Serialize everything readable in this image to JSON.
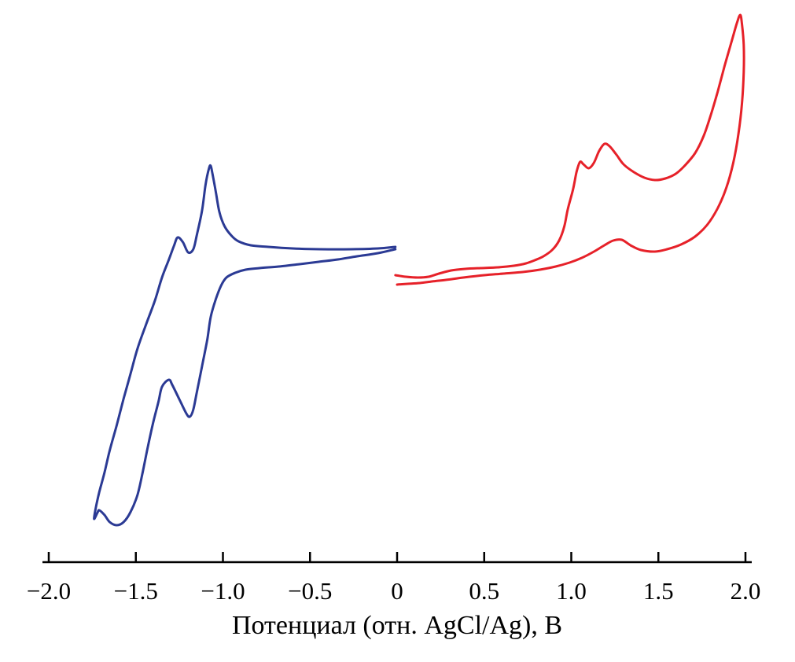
{
  "chart_data": {
    "type": "line",
    "subtype": "cyclic-voltammogram",
    "title": "",
    "xlabel": "Потенциал (отн. AgCl/Ag), В",
    "ylabel": "",
    "grid": false,
    "legend": false,
    "x_axis": {
      "min": -2.0,
      "max": 2.0,
      "ticks": [
        {
          "value": -2.0,
          "label": "−2.0"
        },
        {
          "value": -1.5,
          "label": "−1.5"
        },
        {
          "value": -1.0,
          "label": "−1.0"
        },
        {
          "value": -0.5,
          "label": "−0.5"
        },
        {
          "value": 0,
          "label": "0"
        },
        {
          "value": 0.5,
          "label": "0.5"
        },
        {
          "value": 1.0,
          "label": "1.0"
        },
        {
          "value": 1.5,
          "label": "1.5"
        },
        {
          "value": 2.0,
          "label": "2.0"
        }
      ]
    },
    "y_axis": {
      "visible": false,
      "units": "arbitrary"
    },
    "series": [
      {
        "name": "reduction-scan-blue",
        "color": "#2b3a94",
        "points": [
          [
            -0.01,
            1.3
          ],
          [
            -0.11,
            0.8
          ],
          [
            -0.23,
            0.4
          ],
          [
            -0.34,
            0.0
          ],
          [
            -0.45,
            -0.3
          ],
          [
            -0.56,
            -0.6
          ],
          [
            -0.68,
            -0.9
          ],
          [
            -0.79,
            -1.1
          ],
          [
            -0.87,
            -1.3
          ],
          [
            -0.93,
            -1.7
          ],
          [
            -0.98,
            -2.3
          ],
          [
            -1.01,
            -3.3
          ],
          [
            -1.04,
            -5.0
          ],
          [
            -1.07,
            -7.3
          ],
          [
            -1.09,
            -10.2
          ],
          [
            -1.12,
            -13.6
          ],
          [
            -1.15,
            -16.9
          ],
          [
            -1.17,
            -19.1
          ],
          [
            -1.19,
            -20.0
          ],
          [
            -1.21,
            -19.6
          ],
          [
            -1.25,
            -17.8
          ],
          [
            -1.29,
            -16.0
          ],
          [
            -1.31,
            -15.3
          ],
          [
            -1.35,
            -16.2
          ],
          [
            -1.37,
            -18.1
          ],
          [
            -1.4,
            -20.7
          ],
          [
            -1.43,
            -23.7
          ],
          [
            -1.46,
            -27.0
          ],
          [
            -1.49,
            -29.9
          ],
          [
            -1.53,
            -32.1
          ],
          [
            -1.57,
            -33.4
          ],
          [
            -1.61,
            -33.8
          ],
          [
            -1.65,
            -33.4
          ],
          [
            -1.68,
            -32.5
          ],
          [
            -1.71,
            -31.9
          ],
          [
            -1.72,
            -32.2
          ],
          [
            -1.74,
            -33.0
          ],
          [
            -1.73,
            -31.6
          ],
          [
            -1.71,
            -29.6
          ],
          [
            -1.68,
            -27.1
          ],
          [
            -1.65,
            -24.3
          ],
          [
            -1.61,
            -21.1
          ],
          [
            -1.57,
            -17.7
          ],
          [
            -1.53,
            -14.5
          ],
          [
            -1.49,
            -11.3
          ],
          [
            -1.44,
            -8.2
          ],
          [
            -1.39,
            -5.2
          ],
          [
            -1.35,
            -2.3
          ],
          [
            -1.31,
            0.0
          ],
          [
            -1.28,
            1.8
          ],
          [
            -1.26,
            2.8
          ],
          [
            -1.23,
            2.2
          ],
          [
            -1.2,
            0.9
          ],
          [
            -1.17,
            1.3
          ],
          [
            -1.15,
            3.1
          ],
          [
            -1.12,
            6.2
          ],
          [
            -1.1,
            9.5
          ],
          [
            -1.08,
            11.6
          ],
          [
            -1.07,
            11.9
          ],
          [
            -1.06,
            10.9
          ],
          [
            -1.04,
            8.5
          ],
          [
            -1.02,
            6.0
          ],
          [
            -0.99,
            4.2
          ],
          [
            -0.95,
            3.0
          ],
          [
            -0.91,
            2.3
          ],
          [
            -0.84,
            1.8
          ],
          [
            -0.74,
            1.6
          ],
          [
            -0.6,
            1.4
          ],
          [
            -0.44,
            1.3
          ],
          [
            -0.26,
            1.3
          ],
          [
            -0.11,
            1.4
          ],
          [
            -0.01,
            1.6
          ]
        ]
      },
      {
        "name": "oxidation-scan-red",
        "color": "#e62129",
        "points": [
          [
            -0.01,
            -2.0
          ],
          [
            0.05,
            -2.2
          ],
          [
            0.12,
            -2.3
          ],
          [
            0.18,
            -2.2
          ],
          [
            0.24,
            -1.8
          ],
          [
            0.31,
            -1.4
          ],
          [
            0.39,
            -1.2
          ],
          [
            0.48,
            -1.1
          ],
          [
            0.58,
            -1.0
          ],
          [
            0.67,
            -0.8
          ],
          [
            0.74,
            -0.5
          ],
          [
            0.79,
            -0.1
          ],
          [
            0.84,
            0.4
          ],
          [
            0.89,
            1.2
          ],
          [
            0.93,
            2.4
          ],
          [
            0.96,
            4.2
          ],
          [
            0.98,
            6.4
          ],
          [
            1.01,
            8.9
          ],
          [
            1.03,
            11.1
          ],
          [
            1.05,
            12.4
          ],
          [
            1.07,
            12.1
          ],
          [
            1.1,
            11.6
          ],
          [
            1.13,
            12.3
          ],
          [
            1.16,
            13.8
          ],
          [
            1.19,
            14.7
          ],
          [
            1.22,
            14.4
          ],
          [
            1.26,
            13.3
          ],
          [
            1.3,
            12.1
          ],
          [
            1.36,
            11.1
          ],
          [
            1.42,
            10.4
          ],
          [
            1.48,
            10.1
          ],
          [
            1.54,
            10.3
          ],
          [
            1.6,
            10.9
          ],
          [
            1.65,
            11.9
          ],
          [
            1.71,
            13.5
          ],
          [
            1.76,
            15.7
          ],
          [
            1.8,
            18.3
          ],
          [
            1.84,
            21.3
          ],
          [
            1.88,
            24.6
          ],
          [
            1.92,
            27.7
          ],
          [
            1.95,
            30.0
          ],
          [
            1.97,
            31.1
          ],
          [
            1.98,
            29.9
          ],
          [
            1.99,
            27.3
          ],
          [
            1.99,
            23.8
          ],
          [
            1.98,
            19.9
          ],
          [
            1.96,
            16.0
          ],
          [
            1.93,
            12.3
          ],
          [
            1.89,
            9.1
          ],
          [
            1.84,
            6.5
          ],
          [
            1.78,
            4.4
          ],
          [
            1.71,
            2.9
          ],
          [
            1.63,
            1.9
          ],
          [
            1.55,
            1.3
          ],
          [
            1.48,
            1.0
          ],
          [
            1.4,
            1.2
          ],
          [
            1.34,
            1.8
          ],
          [
            1.29,
            2.5
          ],
          [
            1.24,
            2.4
          ],
          [
            1.19,
            1.8
          ],
          [
            1.13,
            1.0
          ],
          [
            1.06,
            0.2
          ],
          [
            0.99,
            -0.4
          ],
          [
            0.91,
            -0.9
          ],
          [
            0.82,
            -1.3
          ],
          [
            0.72,
            -1.6
          ],
          [
            0.61,
            -1.8
          ],
          [
            0.5,
            -2.0
          ],
          [
            0.38,
            -2.3
          ],
          [
            0.28,
            -2.6
          ],
          [
            0.2,
            -2.8
          ],
          [
            0.13,
            -3.0
          ],
          [
            0.06,
            -3.1
          ],
          [
            0.0,
            -3.2
          ]
        ]
      }
    ]
  }
}
